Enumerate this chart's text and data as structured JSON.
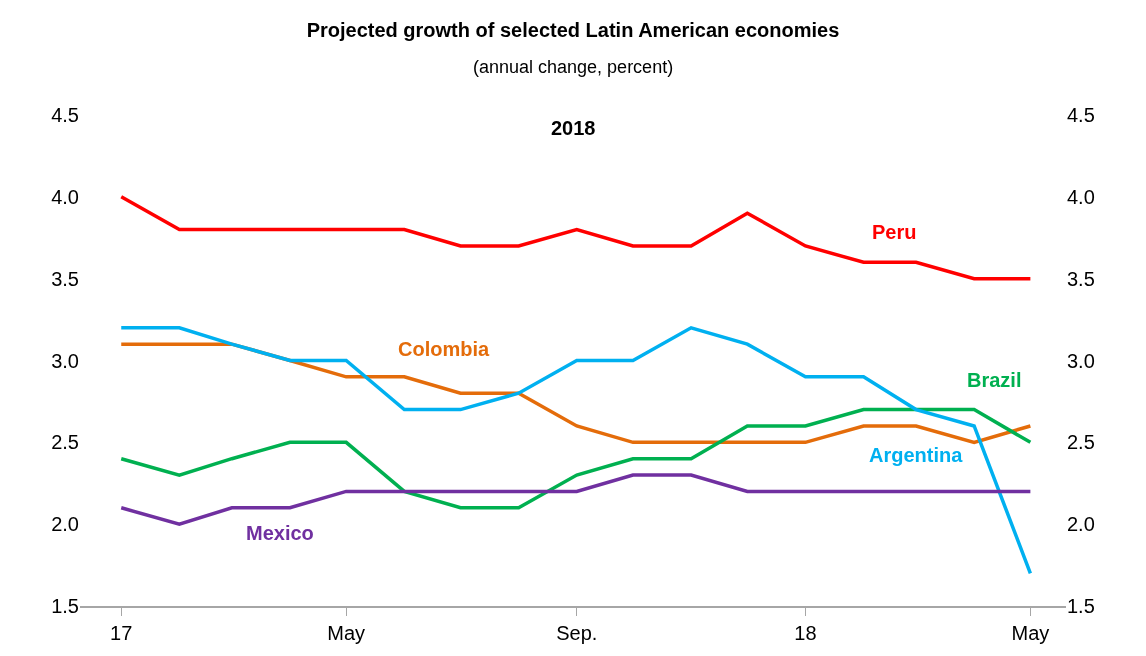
{
  "chart_data": {
    "type": "line",
    "title": "Projected growth of selected Latin American economies",
    "subtitle": "(annual change, percent)",
    "annotations": [
      "2018"
    ],
    "x": [
      "2017-01",
      "2017-02",
      "2017-03",
      "2017-04",
      "2017-05",
      "2017-06",
      "2017-07",
      "2017-08",
      "2017-09",
      "2017-10",
      "2017-11",
      "2017-12",
      "2018-01",
      "2018-02",
      "2018-03",
      "2018-04",
      "2018-05"
    ],
    "series": [
      {
        "name": "Peru",
        "color": "#ff0000",
        "values": [
          4.0,
          3.8,
          3.8,
          3.8,
          3.8,
          3.8,
          3.7,
          3.7,
          3.8,
          3.7,
          3.7,
          3.9,
          3.7,
          3.6,
          3.6,
          3.5,
          3.5
        ]
      },
      {
        "name": "Colombia",
        "color": "#e46c0a",
        "values": [
          3.1,
          3.1,
          3.1,
          3.0,
          2.9,
          2.9,
          2.8,
          2.8,
          2.6,
          2.5,
          2.5,
          2.5,
          2.5,
          2.6,
          2.6,
          2.5,
          2.6
        ]
      },
      {
        "name": "Brazil",
        "color": "#00b050",
        "values": [
          2.4,
          2.3,
          2.4,
          2.5,
          2.5,
          2.2,
          2.1,
          2.1,
          2.3,
          2.4,
          2.4,
          2.6,
          2.6,
          2.7,
          2.7,
          2.7,
          2.5
        ]
      },
      {
        "name": "Argentina",
        "color": "#00b0f0",
        "values": [
          3.2,
          3.2,
          3.1,
          3.0,
          3.0,
          2.7,
          2.7,
          2.8,
          3.0,
          3.0,
          3.2,
          3.1,
          2.9,
          2.9,
          2.7,
          2.6,
          1.7
        ]
      },
      {
        "name": "Mexico",
        "color": "#7030a0",
        "values": [
          2.1,
          2.0,
          2.1,
          2.1,
          2.2,
          2.2,
          2.2,
          2.2,
          2.2,
          2.3,
          2.3,
          2.2,
          2.2,
          2.2,
          2.2,
          2.2,
          2.2
        ]
      }
    ],
    "xlim": [
      "2016-12-10",
      "2018-05-20"
    ],
    "xticks": [
      {
        "value": "2017-01",
        "label": "17"
      },
      {
        "value": "2017-05",
        "label": "May"
      },
      {
        "value": "2017-09",
        "label": "Sep."
      },
      {
        "value": "2018-01",
        "label": "18"
      },
      {
        "value": "2018-05",
        "label": "May"
      }
    ],
    "ylim": [
      1.5,
      4.5
    ],
    "yticks": [
      {
        "value": 1.5,
        "label": "1.5"
      },
      {
        "value": 2.0,
        "label": "2.0"
      },
      {
        "value": 2.5,
        "label": "2.5"
      },
      {
        "value": 3.0,
        "label": "3.0"
      },
      {
        "value": 3.5,
        "label": "3.5"
      },
      {
        "value": 4.0,
        "label": "4.0"
      },
      {
        "value": 4.5,
        "label": "4.5"
      }
    ],
    "y2lim": [
      1.5,
      4.5
    ],
    "y2ticks": [
      {
        "value": 1.5,
        "label": "1.5"
      },
      {
        "value": 2.0,
        "label": "2.0"
      },
      {
        "value": 2.5,
        "label": "2.5"
      },
      {
        "value": 3.0,
        "label": "3.0"
      },
      {
        "value": 3.5,
        "label": "3.5"
      },
      {
        "value": 4.0,
        "label": "4.0"
      },
      {
        "value": 4.5,
        "label": "4.5"
      }
    ],
    "grid": false,
    "legend": false,
    "marker": "none",
    "line_style": "solid"
  }
}
